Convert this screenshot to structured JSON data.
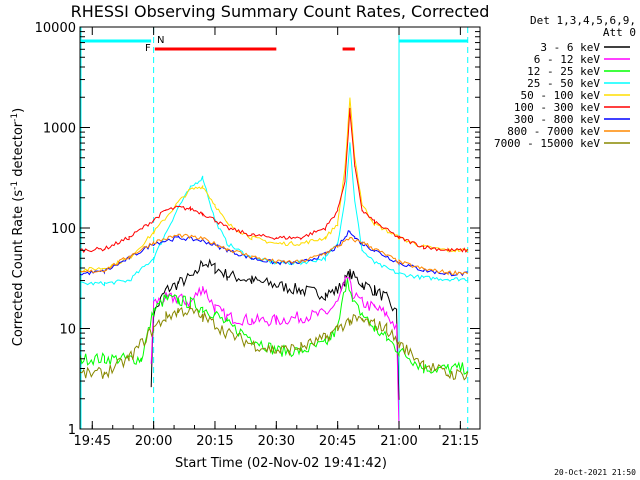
{
  "chart_data": {
    "type": "line",
    "title": "RHESSI Observing Summary Count Rates, Corrected",
    "xlabel": "Start Time (02-Nov-02 19:41:42)",
    "ylabel": "Corrected Count Rate (s",
    "ylabel_sup": "-1",
    "ylabel_tail": " detector",
    "ylabel_sup2": "-1",
    "ylabel_end": ")",
    "y_scale": "log",
    "ylim": [
      1,
      10000
    ],
    "xlim_minutes": [
      19.7,
      21.33
    ],
    "x_ticks": [
      {
        "label": "19:45",
        "h": 19.75
      },
      {
        "label": "20:00",
        "h": 20.0
      },
      {
        "label": "20:15",
        "h": 20.25
      },
      {
        "label": "20:30",
        "h": 20.5
      },
      {
        "label": "20:45",
        "h": 20.75
      },
      {
        "label": "21:00",
        "h": 21.0
      },
      {
        "label": "21:15",
        "h": 21.25
      }
    ],
    "y_ticks": [
      {
        "label": "1",
        "v": 1
      },
      {
        "label": "10",
        "v": 10
      },
      {
        "label": "100",
        "v": 100
      },
      {
        "label": "1000",
        "v": 1000
      },
      {
        "label": "10000",
        "v": 10000
      }
    ],
    "legend_header": "Det 1,3,4,5,6,9,",
    "legend_header2": "Att 0",
    "legend_position": "right",
    "series": [
      {
        "name": "3 - 6 keV",
        "color": "#000000",
        "x": [
          19.7,
          19.8,
          19.95,
          19.99,
          20.0,
          20.05,
          20.1,
          20.17,
          20.2,
          20.25,
          20.3,
          20.4,
          20.5,
          20.6,
          20.7,
          20.75,
          20.78,
          20.8,
          20.85,
          20.9,
          20.95,
          20.99,
          21.0
        ],
        "y": [
          null,
          null,
          null,
          3,
          14,
          24,
          28,
          34,
          46,
          40,
          34,
          30,
          27,
          24,
          22,
          24,
          30,
          35,
          28,
          24,
          20,
          14,
          2
        ]
      },
      {
        "name": "6 - 12 keV",
        "color": "#ff00ff",
        "x": [
          19.99,
          20.0,
          20.05,
          20.1,
          20.15,
          20.2,
          20.25,
          20.3,
          20.4,
          20.5,
          20.6,
          20.7,
          20.75,
          20.79,
          20.81,
          20.85,
          20.9,
          20.95,
          20.99,
          21.0
        ],
        "y": [
          4,
          18,
          20,
          20,
          18,
          26,
          16,
          13,
          12,
          12,
          13,
          14,
          18,
          32,
          22,
          18,
          16,
          14,
          10,
          1
        ]
      },
      {
        "name": "12 - 25 keV",
        "color": "#00ff00",
        "x": [
          19.7,
          19.8,
          19.9,
          19.95,
          20.0,
          20.05,
          20.1,
          20.15,
          20.2,
          20.25,
          20.3,
          20.4,
          20.5,
          20.6,
          20.7,
          20.75,
          20.79,
          20.81,
          20.85,
          20.9,
          20.95,
          21.0,
          21.05,
          21.1,
          21.2,
          21.28
        ],
        "y": [
          5,
          5,
          5,
          5,
          15,
          20,
          19,
          18,
          16,
          14,
          11,
          8,
          6,
          6,
          7,
          10,
          34,
          18,
          14,
          10,
          8,
          6,
          5,
          4,
          4,
          4
        ]
      },
      {
        "name": "25 - 50 keV",
        "color": "#00ffff",
        "x": [
          19.7,
          19.8,
          19.9,
          20.0,
          20.1,
          20.15,
          20.2,
          20.25,
          20.3,
          20.4,
          20.5,
          20.6,
          20.7,
          20.75,
          20.78,
          20.8,
          20.82,
          20.85,
          20.9,
          21.0,
          21.1,
          21.2,
          21.28
        ],
        "y": [
          28,
          28,
          30,
          50,
          160,
          250,
          320,
          120,
          70,
          50,
          45,
          45,
          50,
          70,
          200,
          700,
          180,
          60,
          45,
          35,
          32,
          31,
          31
        ]
      },
      {
        "name": "50 - 100 keV",
        "color": "#ffdd00",
        "x": [
          19.7,
          19.8,
          19.9,
          20.0,
          20.1,
          20.15,
          20.2,
          20.25,
          20.3,
          20.4,
          20.5,
          20.6,
          20.7,
          20.75,
          20.78,
          20.8,
          20.82,
          20.85,
          20.9,
          21.0,
          21.1,
          21.2,
          21.28
        ],
        "y": [
          38,
          40,
          50,
          90,
          180,
          240,
          260,
          170,
          110,
          80,
          70,
          70,
          80,
          110,
          400,
          1900,
          500,
          170,
          110,
          80,
          65,
          60,
          60
        ]
      },
      {
        "name": "100 - 300 keV",
        "color": "#ff0000",
        "x": [
          19.7,
          19.8,
          19.9,
          20.0,
          20.05,
          20.1,
          20.15,
          20.2,
          20.25,
          20.3,
          20.4,
          20.5,
          20.6,
          20.7,
          20.75,
          20.78,
          20.8,
          20.82,
          20.85,
          20.9,
          21.0,
          21.1,
          21.2,
          21.28
        ],
        "y": [
          60,
          62,
          80,
          120,
          150,
          160,
          155,
          140,
          120,
          100,
          85,
          80,
          80,
          100,
          150,
          300,
          1500,
          400,
          150,
          115,
          80,
          65,
          60,
          60
        ]
      },
      {
        "name": "300 - 800 keV",
        "color": "#0000ff",
        "x": [
          19.7,
          19.8,
          19.9,
          20.0,
          20.1,
          20.2,
          20.3,
          20.4,
          20.5,
          20.6,
          20.7,
          20.75,
          20.78,
          20.8,
          20.82,
          20.85,
          20.9,
          21.0,
          21.1,
          21.2,
          21.28
        ],
        "y": [
          35,
          37,
          50,
          70,
          80,
          75,
          60,
          50,
          45,
          45,
          55,
          65,
          80,
          95,
          80,
          70,
          60,
          45,
          38,
          35,
          35
        ]
      },
      {
        "name": "800 - 7000 keV",
        "color": "#ff8800",
        "x": [
          19.7,
          19.8,
          19.9,
          20.0,
          20.1,
          20.2,
          20.3,
          20.4,
          20.5,
          20.6,
          20.7,
          20.75,
          20.8,
          20.85,
          20.9,
          21.0,
          21.1,
          21.2,
          21.28
        ],
        "y": [
          36,
          38,
          52,
          72,
          85,
          78,
          62,
          52,
          46,
          46,
          56,
          66,
          78,
          72,
          62,
          46,
          39,
          36,
          36
        ]
      },
      {
        "name": "7000 - 15000 keV",
        "color": "#888800",
        "x": [
          19.7,
          19.8,
          19.9,
          20.0,
          20.05,
          20.1,
          20.15,
          20.2,
          20.25,
          20.3,
          20.4,
          20.5,
          20.6,
          20.7,
          20.75,
          20.8,
          20.85,
          20.9,
          20.95,
          21.0,
          21.1,
          21.2,
          21.28
        ],
        "y": [
          3.5,
          3.6,
          5,
          10,
          13,
          15,
          15,
          13,
          11,
          9,
          7,
          6,
          6.5,
          8,
          10,
          12,
          12,
          11,
          10,
          7,
          4.5,
          3.5,
          3.5
        ]
      }
    ],
    "annotations": [
      {
        "label": "F",
        "color": "#ff0000"
      },
      {
        "label": "N",
        "color": "#00ffff"
      }
    ],
    "timestamp": "20-Oct-2021 21:50"
  }
}
